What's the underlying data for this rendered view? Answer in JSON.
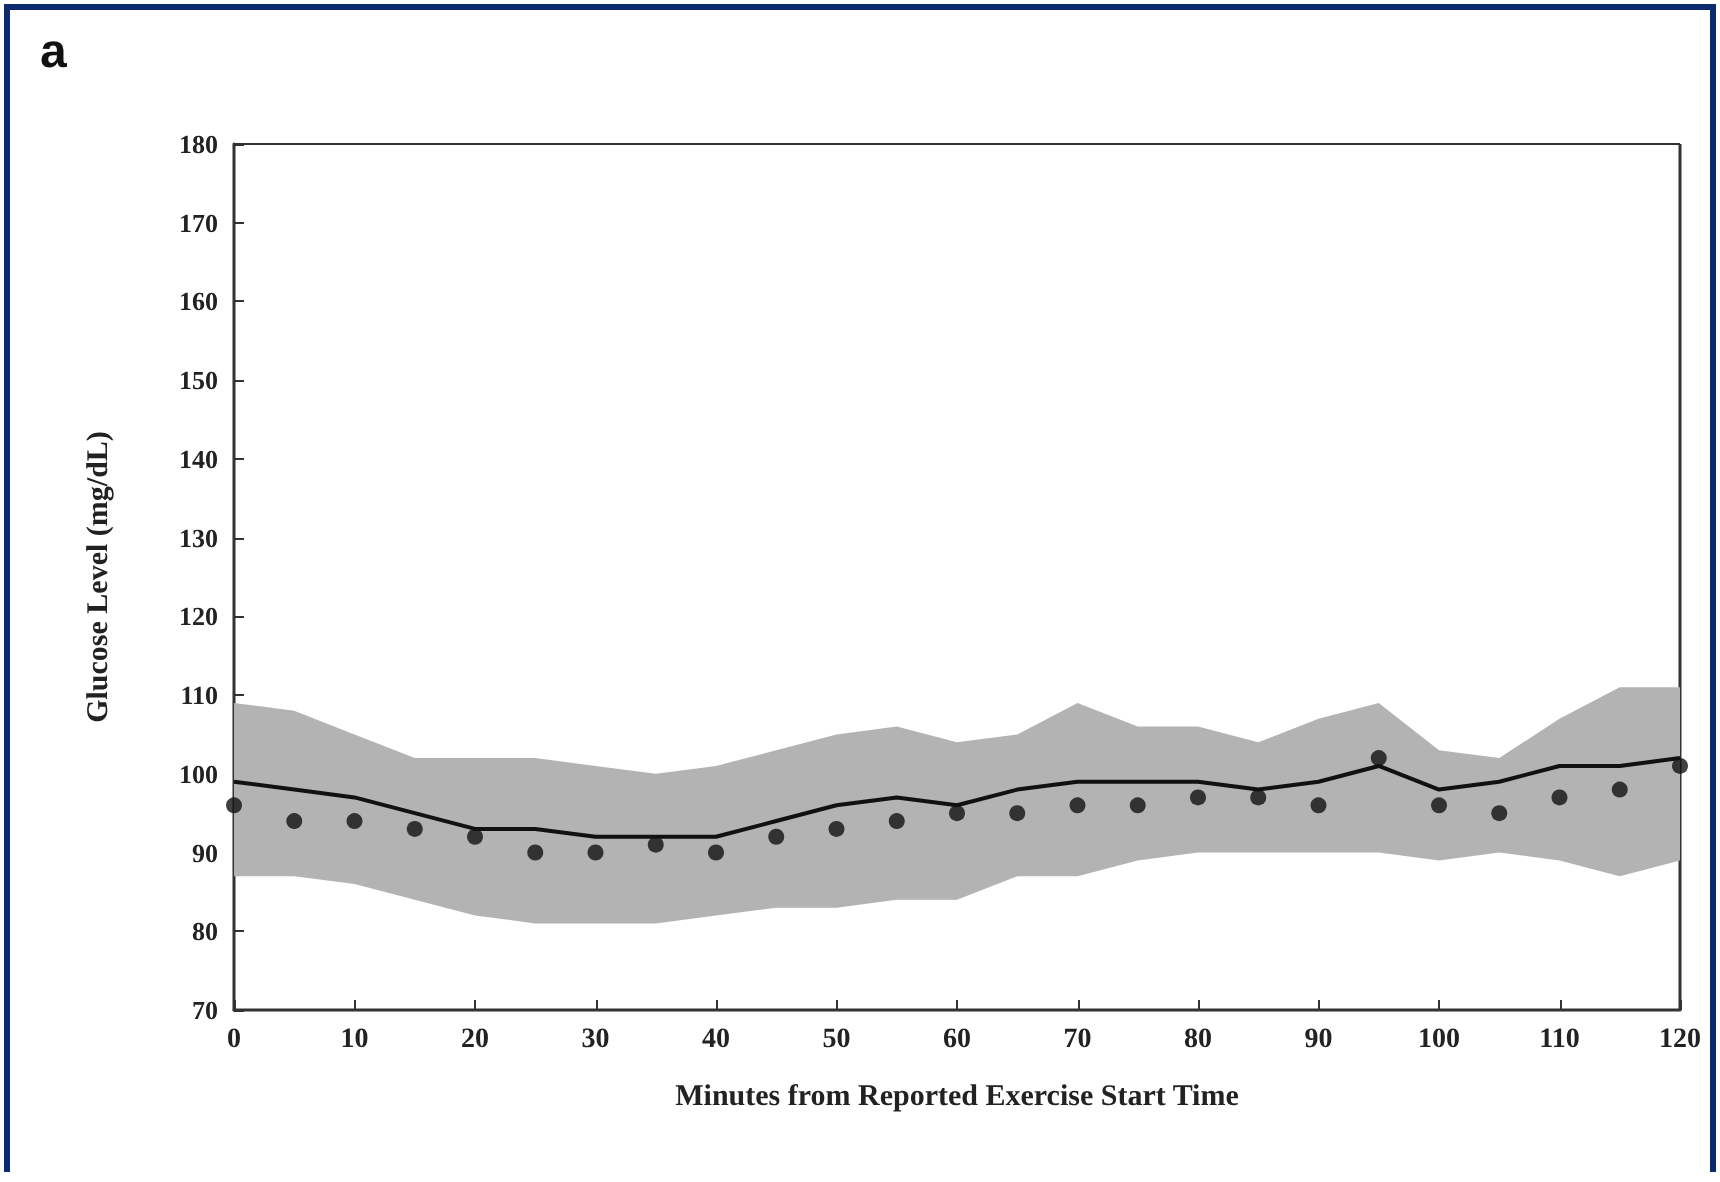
{
  "chart_data": {
    "type": "line",
    "xlabel": "Minutes from Reported Exercise Start Time",
    "ylabel": "Glucose Level (mg/dL)",
    "annotations": [
      "a"
    ],
    "x": [
      0,
      5,
      10,
      15,
      20,
      25,
      30,
      35,
      40,
      45,
      50,
      55,
      60,
      65,
      70,
      75,
      80,
      85,
      90,
      95,
      100,
      105,
      110,
      115,
      120
    ],
    "xlim": [
      0,
      120
    ],
    "xticks": [
      0,
      10,
      20,
      30,
      40,
      50,
      60,
      70,
      80,
      90,
      100,
      110,
      120
    ],
    "ylim": [
      70,
      180
    ],
    "yticks": [
      70,
      80,
      90,
      100,
      110,
      120,
      130,
      140,
      150,
      160,
      170,
      180
    ],
    "grid": false,
    "series": [
      {
        "color": "#111111",
        "marker": "none",
        "line_style": "solid",
        "values": [
          99,
          98,
          97,
          95,
          93,
          93,
          92,
          92,
          92,
          94,
          96,
          97,
          96,
          98,
          99,
          99,
          99,
          98,
          99,
          101,
          98,
          99,
          101,
          101,
          102
        ],
        "lower": [
          87,
          87,
          86,
          84,
          82,
          81,
          81,
          81,
          82,
          83,
          83,
          84,
          84,
          87,
          87,
          89,
          90,
          90,
          90,
          90,
          89,
          90,
          89,
          87,
          89
        ],
        "upper": [
          109,
          108,
          105,
          102,
          102,
          102,
          101,
          100,
          101,
          103,
          105,
          106,
          104,
          105,
          109,
          106,
          106,
          104,
          107,
          109,
          103,
          102,
          107,
          111,
          111
        ]
      },
      {
        "type": "scatter",
        "color": "#111111",
        "marker": "circle",
        "values": [
          96,
          94,
          94,
          93,
          92,
          90,
          90,
          91,
          90,
          92,
          93,
          94,
          95,
          95,
          96,
          96,
          97,
          97,
          96,
          102,
          96,
          95,
          97,
          98,
          101
        ]
      }
    ]
  }
}
